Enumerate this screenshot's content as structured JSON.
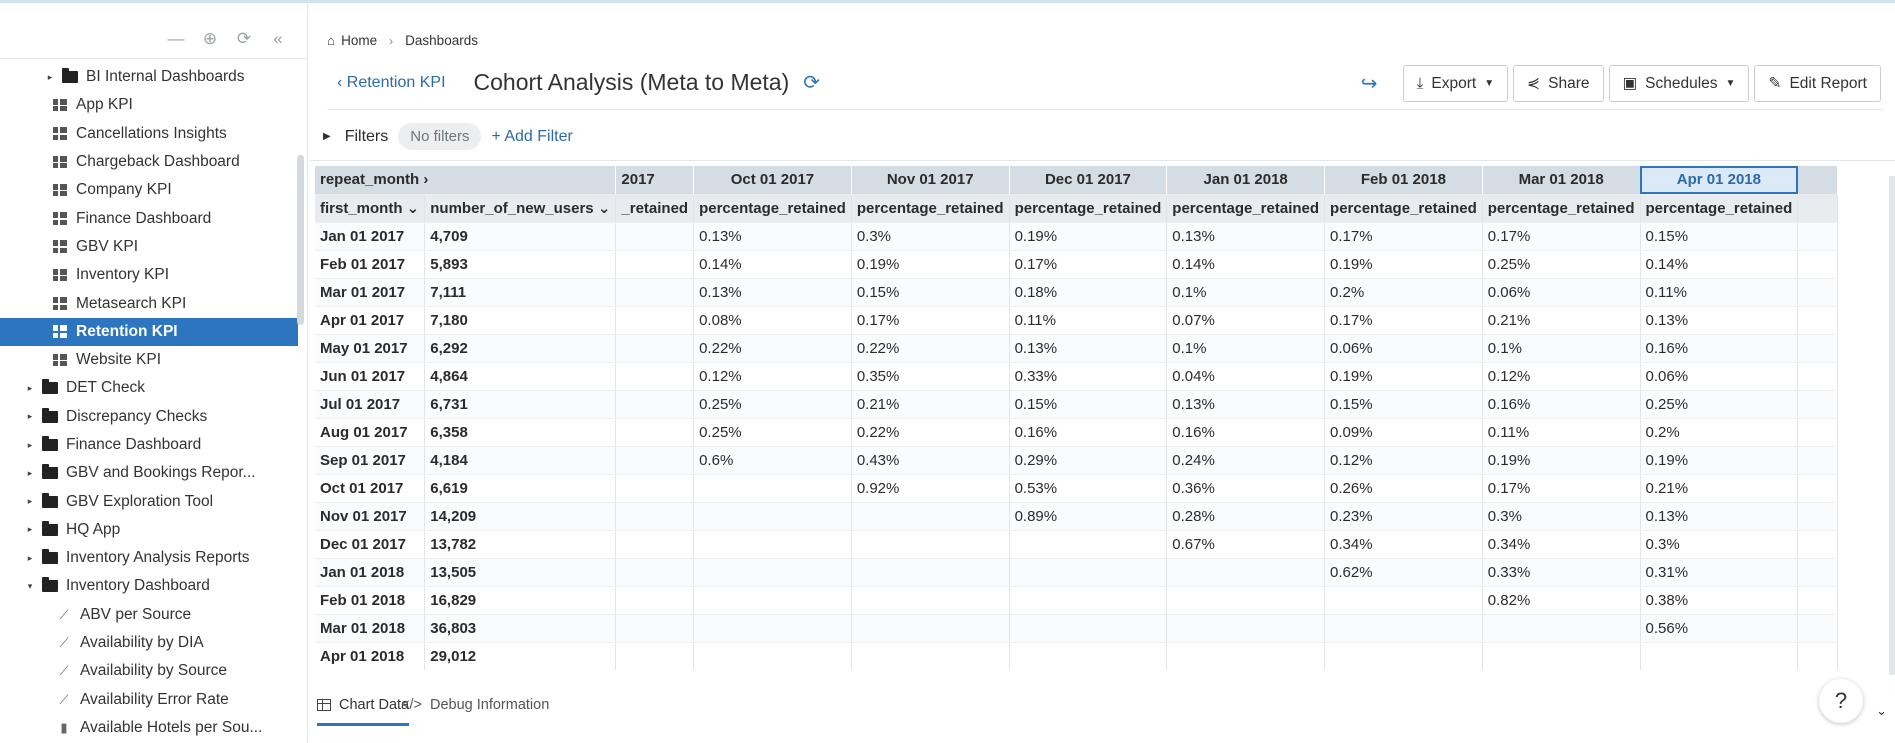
{
  "sidebar": {
    "items": [
      {
        "label": "BI Internal Dashboards",
        "type": "folder",
        "level": 1,
        "caret": "▸"
      },
      {
        "label": "App KPI",
        "type": "dashboard",
        "level": 2
      },
      {
        "label": "Cancellations Insights",
        "type": "dashboard",
        "level": 2
      },
      {
        "label": "Chargeback Dashboard",
        "type": "dashboard",
        "level": 2
      },
      {
        "label": "Company KPI",
        "type": "dashboard",
        "level": 2
      },
      {
        "label": "Finance Dashboard",
        "type": "dashboard",
        "level": 2
      },
      {
        "label": "GBV KPI",
        "type": "dashboard",
        "level": 2
      },
      {
        "label": "Inventory KPI",
        "type": "dashboard",
        "level": 2
      },
      {
        "label": "Metasearch KPI",
        "type": "dashboard",
        "level": 2
      },
      {
        "label": "Retention KPI",
        "type": "dashboard",
        "level": 2,
        "active": true
      },
      {
        "label": "Website KPI",
        "type": "dashboard",
        "level": 2
      },
      {
        "label": "DET Check",
        "type": "folder",
        "level": 0,
        "caret": "▸"
      },
      {
        "label": "Discrepancy Checks",
        "type": "folder",
        "level": 0,
        "caret": "▸"
      },
      {
        "label": "Finance Dashboard",
        "type": "folder",
        "level": 0,
        "caret": "▸"
      },
      {
        "label": "GBV and Bookings Repor...",
        "type": "folder",
        "level": 0,
        "caret": "▸"
      },
      {
        "label": "GBV Exploration Tool",
        "type": "folder",
        "level": 0,
        "caret": "▸"
      },
      {
        "label": "HQ App",
        "type": "folder",
        "level": 0,
        "caret": "▸"
      },
      {
        "label": "Inventory Analysis Reports",
        "type": "folder",
        "level": 0,
        "caret": "▸"
      },
      {
        "label": "Inventory Dashboard",
        "type": "folder",
        "level": 0,
        "caret": "▾"
      },
      {
        "label": "ABV per Source",
        "type": "chart",
        "level": 1
      },
      {
        "label": "Availability by DIA",
        "type": "chart",
        "level": 1
      },
      {
        "label": "Availability by Source",
        "type": "chart",
        "level": 1
      },
      {
        "label": "Availability Error Rate",
        "type": "chart",
        "level": 1
      },
      {
        "label": "Available Hotels per Sou...",
        "type": "bar",
        "level": 1
      }
    ]
  },
  "breadcrumb": {
    "home": "Home",
    "dashboards": "Dashboards"
  },
  "header": {
    "back_label": "Retention KPI",
    "title": "Cohort Analysis (Meta to Meta)",
    "export_label": "Export",
    "share_label": "Share",
    "schedules_label": "Schedules",
    "edit_label": "Edit Report"
  },
  "filters": {
    "label": "Filters",
    "none_label": "No filters",
    "add_label": "Add Filter"
  },
  "table": {
    "pivot_header": "repeat_month",
    "row_header_1": "first_month",
    "row_header_2": "number_of_new_users",
    "columns": [
      "2017",
      "Oct 01 2017",
      "Nov 01 2017",
      "Dec 01 2017",
      "Jan 01 2018",
      "Feb 01 2018",
      "Mar 01 2018",
      "Apr 01 2018"
    ],
    "subheaders": [
      "_retained",
      "percentage_retained",
      "percentage_retained",
      "percentage_retained",
      "percentage_retained",
      "percentage_retained",
      "percentage_retained",
      "percentage_retained"
    ],
    "rows": [
      {
        "month": "Jan 01 2017",
        "users": "4,709",
        "vals": [
          "",
          "0.13%",
          "0.3%",
          "0.19%",
          "0.13%",
          "0.17%",
          "0.17%",
          "0.15%"
        ]
      },
      {
        "month": "Feb 01 2017",
        "users": "5,893",
        "vals": [
          "",
          "0.14%",
          "0.19%",
          "0.17%",
          "0.14%",
          "0.19%",
          "0.25%",
          "0.14%"
        ]
      },
      {
        "month": "Mar 01 2017",
        "users": "7,111",
        "vals": [
          "",
          "0.13%",
          "0.15%",
          "0.18%",
          "0.1%",
          "0.2%",
          "0.06%",
          "0.11%"
        ]
      },
      {
        "month": "Apr 01 2017",
        "users": "7,180",
        "vals": [
          "",
          "0.08%",
          "0.17%",
          "0.11%",
          "0.07%",
          "0.17%",
          "0.21%",
          "0.13%"
        ]
      },
      {
        "month": "May 01 2017",
        "users": "6,292",
        "vals": [
          "",
          "0.22%",
          "0.22%",
          "0.13%",
          "0.1%",
          "0.06%",
          "0.1%",
          "0.16%"
        ]
      },
      {
        "month": "Jun 01 2017",
        "users": "4,864",
        "vals": [
          "",
          "0.12%",
          "0.35%",
          "0.33%",
          "0.04%",
          "0.19%",
          "0.12%",
          "0.06%"
        ]
      },
      {
        "month": "Jul 01 2017",
        "users": "6,731",
        "vals": [
          "",
          "0.25%",
          "0.21%",
          "0.15%",
          "0.13%",
          "0.15%",
          "0.16%",
          "0.25%"
        ]
      },
      {
        "month": "Aug 01 2017",
        "users": "6,358",
        "vals": [
          "",
          "0.25%",
          "0.22%",
          "0.16%",
          "0.16%",
          "0.09%",
          "0.11%",
          "0.2%"
        ]
      },
      {
        "month": "Sep 01 2017",
        "users": "4,184",
        "vals": [
          "",
          "0.6%",
          "0.43%",
          "0.29%",
          "0.24%",
          "0.12%",
          "0.19%",
          "0.19%"
        ]
      },
      {
        "month": "Oct 01 2017",
        "users": "6,619",
        "vals": [
          "",
          "",
          "0.92%",
          "0.53%",
          "0.36%",
          "0.26%",
          "0.17%",
          "0.21%"
        ]
      },
      {
        "month": "Nov 01 2017",
        "users": "14,209",
        "vals": [
          "",
          "",
          "",
          "0.89%",
          "0.28%",
          "0.23%",
          "0.3%",
          "0.13%"
        ]
      },
      {
        "month": "Dec 01 2017",
        "users": "13,782",
        "vals": [
          "",
          "",
          "",
          "",
          "0.67%",
          "0.34%",
          "0.34%",
          "0.3%"
        ]
      },
      {
        "month": "Jan 01 2018",
        "users": "13,505",
        "vals": [
          "",
          "",
          "",
          "",
          "",
          "0.62%",
          "0.33%",
          "0.31%"
        ]
      },
      {
        "month": "Feb 01 2018",
        "users": "16,829",
        "vals": [
          "",
          "",
          "",
          "",
          "",
          "",
          "0.82%",
          "0.38%"
        ]
      },
      {
        "month": "Mar 01 2018",
        "users": "36,803",
        "vals": [
          "",
          "",
          "",
          "",
          "",
          "",
          "",
          "0.56%"
        ]
      },
      {
        "month": "Apr 01 2018",
        "users": "29,012",
        "vals": [
          "",
          "",
          "",
          "",
          "",
          "",
          "",
          ""
        ]
      }
    ]
  },
  "bottom_tabs": {
    "chart_data": "Chart Data",
    "debug": "Debug Information"
  },
  "help_label": "?"
}
